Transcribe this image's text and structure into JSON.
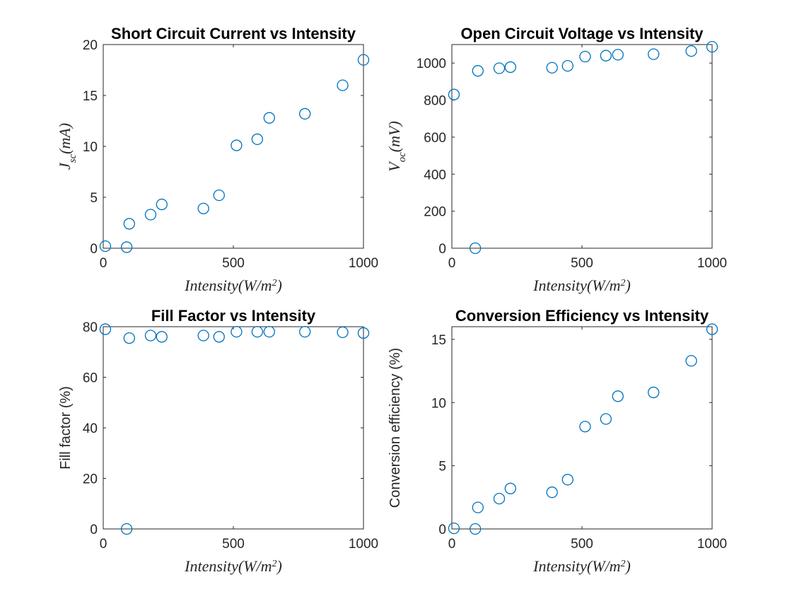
{
  "chart_data": [
    {
      "type": "scatter",
      "title": "Short Circuit Current vs Intensity",
      "xlabel": "Intensity(W/m^2)",
      "ylabel": "J_sc(mA)",
      "xlim": [
        0,
        1000
      ],
      "ylim": [
        0,
        20
      ],
      "xticks": [
        0,
        500,
        1000
      ],
      "yticks": [
        0,
        5,
        10,
        15,
        20
      ],
      "marker": "circle-open",
      "color": "#0072BD",
      "grid": false,
      "series": [
        {
          "x": [
            8,
            90,
            100,
            182,
            225,
            385,
            445,
            512,
            592,
            638,
            775,
            920,
            1000
          ],
          "y": [
            0.2,
            0.1,
            2.4,
            3.3,
            4.3,
            3.9,
            5.2,
            10.1,
            10.7,
            12.8,
            13.2,
            16.0,
            18.5
          ]
        }
      ]
    },
    {
      "type": "scatter",
      "title": "Open Circuit Voltage vs Intensity",
      "xlabel": "Intensity(W/m^2)",
      "ylabel": "V_oc(mV)",
      "xlim": [
        0,
        1000
      ],
      "ylim": [
        0,
        1100
      ],
      "xticks": [
        0,
        500,
        1000
      ],
      "yticks": [
        0,
        200,
        400,
        600,
        800,
        1000
      ],
      "marker": "circle-open",
      "color": "#0072BD",
      "grid": false,
      "series": [
        {
          "x": [
            8,
            90,
            100,
            182,
            225,
            385,
            445,
            512,
            592,
            638,
            775,
            920,
            1000
          ],
          "y": [
            830,
            0,
            958,
            972,
            978,
            975,
            985,
            1035,
            1040,
            1045,
            1048,
            1065,
            1088
          ]
        }
      ]
    },
    {
      "type": "scatter",
      "title": "Fill Factor vs Intensity",
      "xlabel": "Intensity(W/m^2)",
      "ylabel": "Fill factor (%)",
      "xlim": [
        0,
        1000
      ],
      "ylim": [
        0,
        80
      ],
      "xticks": [
        0,
        500,
        1000
      ],
      "yticks": [
        0,
        20,
        40,
        60,
        80
      ],
      "marker": "circle-open",
      "color": "#0072BD",
      "grid": false,
      "series": [
        {
          "x": [
            8,
            90,
            100,
            182,
            225,
            385,
            445,
            512,
            592,
            638,
            775,
            920,
            1000
          ],
          "y": [
            79,
            0,
            75.5,
            76.5,
            76,
            76.5,
            76,
            78,
            78,
            78,
            78,
            77.8,
            77.5
          ]
        }
      ]
    },
    {
      "type": "scatter",
      "title": "Conversion Efficiency vs Intensity",
      "xlabel": "Intensity(W/m^2)",
      "ylabel": "Conversion efficiency (%)",
      "xlim": [
        0,
        1000
      ],
      "ylim": [
        0,
        16
      ],
      "xticks": [
        0,
        500,
        1000
      ],
      "yticks": [
        0,
        5,
        10,
        15
      ],
      "marker": "circle-open",
      "color": "#0072BD",
      "grid": false,
      "series": [
        {
          "x": [
            8,
            90,
            100,
            182,
            225,
            385,
            445,
            512,
            592,
            638,
            775,
            920,
            1000
          ],
          "y": [
            0.05,
            0,
            1.7,
            2.4,
            3.2,
            2.9,
            3.9,
            8.1,
            8.7,
            10.5,
            10.8,
            13.3,
            15.8
          ]
        }
      ]
    }
  ]
}
